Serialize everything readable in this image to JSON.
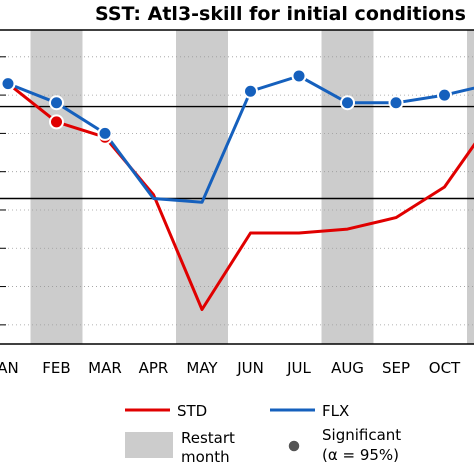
{
  "chart_data": {
    "type": "line",
    "title": "SST: Atl3-skill for initial conditions",
    "categories": [
      "JAN",
      "FEB",
      "MAR",
      "APR",
      "MAY",
      "JUN",
      "JUL",
      "AUG",
      "SEP",
      "OCT",
      "NOV"
    ],
    "x_tick_labels": [
      "AN",
      "FEB",
      "MAR",
      "APR",
      "MAY",
      "JUN",
      "JUL",
      "AUG",
      "SEP",
      "OCT",
      "N"
    ],
    "ylim": [
      0.15,
      0.97
    ],
    "series": [
      {
        "name": "STD",
        "color": "#e00000",
        "values": [
          0.83,
          0.73,
          0.69,
          0.54,
          0.24,
          0.44,
          0.44,
          0.45,
          0.48,
          0.56,
          0.74
        ],
        "significant": [
          true,
          true,
          true,
          false,
          false,
          false,
          false,
          false,
          false,
          false,
          false
        ]
      },
      {
        "name": "FLX",
        "color": "#1560bd",
        "values": [
          0.83,
          0.78,
          0.7,
          0.53,
          0.52,
          0.81,
          0.85,
          0.78,
          0.78,
          0.8,
          0.83
        ],
        "significant": [
          true,
          true,
          true,
          false,
          false,
          true,
          true,
          true,
          true,
          true,
          false
        ]
      }
    ],
    "reference_lines": [
      0.77,
      0.53
    ],
    "restart_months": [
      "FEB",
      "MAY",
      "AUG",
      "NOV"
    ],
    "legend": {
      "position": "bottom",
      "std_label": "STD",
      "flx_label": "FLX",
      "restart_line1": "Restart",
      "restart_line2": "month",
      "sig_line1": "Significant",
      "sig_line2": "(α = 95%)"
    },
    "colors": {
      "std": "#e00000",
      "flx": "#1560bd",
      "restart": "#cccccc",
      "grid": "#9a9a9a"
    }
  }
}
